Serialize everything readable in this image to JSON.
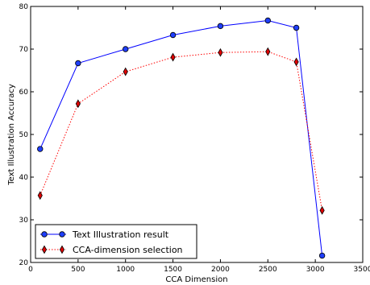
{
  "chart_data": {
    "type": "line",
    "title": "",
    "xlabel": "CCA Dimension",
    "ylabel": "Text Illustration Accuracy",
    "xlim": [
      0,
      3500
    ],
    "ylim": [
      20,
      80
    ],
    "x_ticks": [
      0,
      500,
      1000,
      1500,
      2000,
      2500,
      3000,
      3500
    ],
    "y_ticks": [
      20,
      30,
      40,
      50,
      60,
      70,
      80
    ],
    "grid": false,
    "legend_position": "bottom-left",
    "series": [
      {
        "name": "Text Illustration result",
        "color": "#0000ff",
        "line_style": "solid",
        "marker": "circle",
        "marker_fill": "#1f3fff",
        "x": [
          100,
          500,
          1000,
          1500,
          2000,
          2500,
          2800,
          3072
        ],
        "y": [
          46.6,
          66.7,
          70.0,
          73.3,
          75.4,
          76.7,
          75.0,
          21.6
        ]
      },
      {
        "name": "CCA-dimension selection",
        "color": "#ff0000",
        "line_style": "dotted",
        "marker": "diamond",
        "marker_fill": "#e00000",
        "x": [
          100,
          500,
          1000,
          1500,
          2000,
          2500,
          2800,
          3072
        ],
        "y": [
          35.7,
          57.2,
          64.7,
          68.1,
          69.2,
          69.4,
          67.0,
          32.2
        ]
      }
    ]
  }
}
